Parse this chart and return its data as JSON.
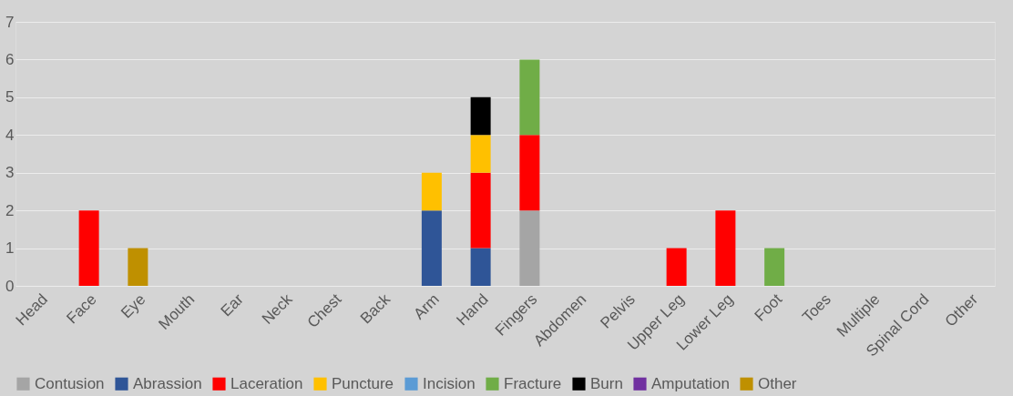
{
  "chart_data": {
    "type": "bar",
    "stacked": true,
    "categories": [
      "Head",
      "Face",
      "Eye",
      "Mouth",
      "Ear",
      "Neck",
      "Chest",
      "Back",
      "Arm",
      "Hand",
      "Fingers",
      "Abdomen",
      "Pelvis",
      "Upper Leg",
      "Lower Leg",
      "Foot",
      "Toes",
      "Multiple",
      "Spinal Cord",
      "Other"
    ],
    "series": [
      {
        "name": "Contusion",
        "color": "#a5a5a5",
        "values": [
          null,
          null,
          null,
          null,
          null,
          null,
          null,
          null,
          null,
          null,
          2,
          null,
          null,
          null,
          null,
          null,
          null,
          null,
          null,
          null
        ]
      },
      {
        "name": "Abrassion",
        "color": "#2f5597",
        "values": [
          null,
          null,
          null,
          null,
          null,
          null,
          null,
          null,
          2,
          1,
          null,
          null,
          null,
          null,
          null,
          null,
          null,
          null,
          null,
          null
        ]
      },
      {
        "name": "Laceration",
        "color": "#ff0000",
        "values": [
          null,
          2,
          null,
          null,
          null,
          null,
          null,
          null,
          null,
          2,
          2,
          null,
          null,
          1,
          2,
          null,
          null,
          null,
          null,
          null
        ]
      },
      {
        "name": "Puncture",
        "color": "#ffc000",
        "values": [
          null,
          null,
          null,
          null,
          null,
          null,
          null,
          null,
          1,
          1,
          null,
          null,
          null,
          null,
          null,
          null,
          null,
          null,
          null,
          null
        ]
      },
      {
        "name": "Incision",
        "color": "#5b9bd5",
        "values": [
          null,
          null,
          null,
          null,
          null,
          null,
          null,
          null,
          null,
          null,
          null,
          null,
          null,
          null,
          null,
          null,
          null,
          null,
          null,
          null
        ]
      },
      {
        "name": "Fracture",
        "color": "#70ad47",
        "values": [
          null,
          null,
          null,
          null,
          null,
          null,
          null,
          null,
          null,
          null,
          2,
          null,
          null,
          null,
          null,
          1,
          null,
          null,
          null,
          null
        ]
      },
      {
        "name": "Burn",
        "color": "#000000",
        "values": [
          null,
          null,
          null,
          null,
          null,
          null,
          null,
          null,
          null,
          1,
          null,
          null,
          null,
          null,
          null,
          null,
          null,
          null,
          null,
          null
        ]
      },
      {
        "name": "Amputation",
        "color": "#7030a0",
        "values": [
          null,
          null,
          null,
          null,
          null,
          null,
          null,
          null,
          null,
          null,
          null,
          null,
          null,
          null,
          null,
          null,
          null,
          null,
          null,
          null
        ]
      },
      {
        "name": "Other",
        "color": "#bf9000",
        "values": [
          null,
          null,
          1,
          null,
          null,
          null,
          null,
          null,
          null,
          null,
          null,
          null,
          null,
          null,
          null,
          null,
          null,
          null,
          null,
          null
        ]
      }
    ],
    "ylim": [
      0,
      7
    ],
    "yticks": [
      0,
      1,
      2,
      3,
      4,
      5,
      6,
      7
    ],
    "grid": "y",
    "legend": "bottom"
  }
}
